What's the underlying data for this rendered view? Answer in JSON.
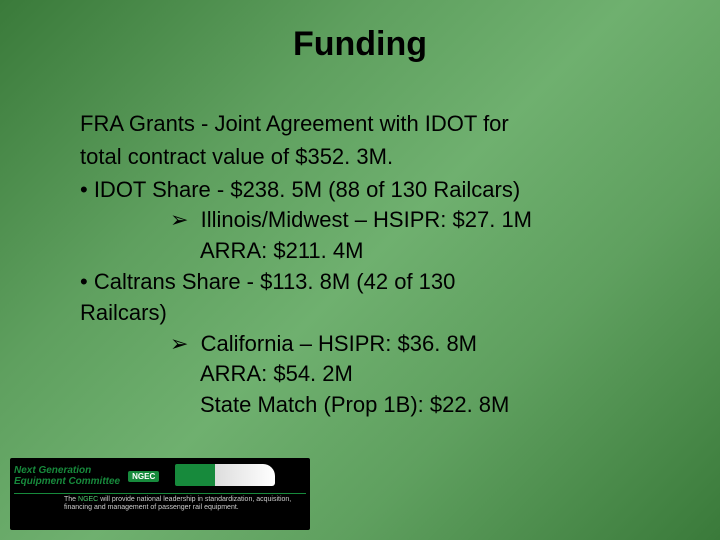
{
  "title": "Funding",
  "intro_line1": "FRA Grants - Joint Agreement with IDOT for",
  "intro_line2": "total contract value of $352. 3M.",
  "idot_header": "• IDOT Share - $238. 5M (88 of 130 Railcars)",
  "idot_sub1": "➢  Illinois/Midwest – HSIPR: $27. 1M",
  "idot_sub2": "ARRA: $211. 4M",
  "caltrans_header1": "• Caltrans Share - $113. 8M (42 of 130",
  "caltrans_header2": "Railcars)",
  "cal_sub1": "➢  California – HSIPR: $36. 8M",
  "cal_sub2": "ARRA: $54. 2M",
  "cal_sub3": "State Match (Prop 1B): $22. 8M",
  "footer": {
    "org_line1": "Next Generation",
    "org_line2": "Equipment Committee",
    "badge": "NGEC",
    "tagline_prefix": "The ",
    "tagline_highlight": "NGEC",
    "tagline_rest": " will provide national leadership in standardization, acquisition, financing and management of passenger rail equipment."
  },
  "colors": {
    "bg_gradient_start": "#3a7a3a",
    "bg_gradient_mid": "#6fb06f",
    "accent_green": "#178a3c",
    "text": "#000000"
  }
}
